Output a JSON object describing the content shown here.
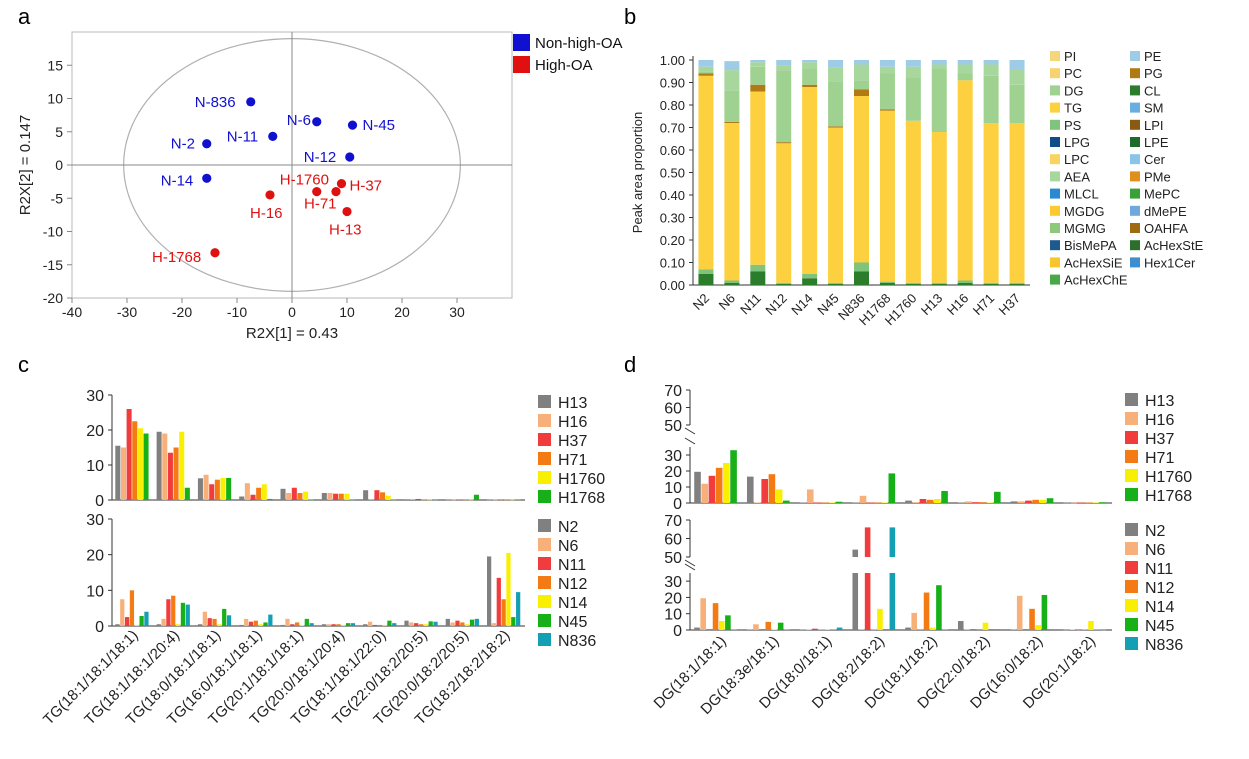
{
  "chart_data": [
    {
      "panel": "a",
      "type": "scatter",
      "xlabel": "R2X[1] = 0.43",
      "ylabel": "R2X[2] = 0.147",
      "xlim": [
        -40,
        40
      ],
      "ylim": [
        -20,
        20
      ],
      "xticks": [
        -40,
        -30,
        -20,
        -10,
        0,
        10,
        20,
        30
      ],
      "yticks": [
        -20,
        -15,
        -10,
        -5,
        0,
        5,
        10,
        15
      ],
      "legend": [
        {
          "label": "Non-high-OA",
          "color": "#1010d0"
        },
        {
          "label": "High-OA",
          "color": "#e01010"
        }
      ],
      "series": [
        {
          "name": "Non-high-OA",
          "color": "#1010d0",
          "points": [
            {
              "label": "N-836",
              "x": -7.5,
              "y": 9.5
            },
            {
              "label": "N-6",
              "x": 4.5,
              "y": 6.5
            },
            {
              "label": "N-45",
              "x": 11,
              "y": 6
            },
            {
              "label": "N-11",
              "x": -3.5,
              "y": 4.3
            },
            {
              "label": "N-2",
              "x": -15.5,
              "y": 3.2
            },
            {
              "label": "N-12",
              "x": 10.5,
              "y": 1.2
            },
            {
              "label": "N-14",
              "x": -15.5,
              "y": -2
            }
          ]
        },
        {
          "name": "High-OA",
          "color": "#e01010",
          "points": [
            {
              "label": "H-1760",
              "x": 4.5,
              "y": -4
            },
            {
              "label": "H-37",
              "x": 9,
              "y": -2.8
            },
            {
              "label": "H-16",
              "x": -4,
              "y": -4.5
            },
            {
              "label": "H-71",
              "x": 8,
              "y": -4
            },
            {
              "label": "H-13",
              "x": 10,
              "y": -7
            },
            {
              "label": "H-1768",
              "x": -14,
              "y": -13.2
            }
          ]
        }
      ]
    },
    {
      "panel": "b",
      "type": "bar",
      "stacked": true,
      "ylabel": "Peak area proportion",
      "ylim": [
        0,
        1
      ],
      "yticks": [
        "0.00",
        "0.10",
        "0.20",
        "0.30",
        "0.40",
        "0.50",
        "0.60",
        "0.70",
        "0.80",
        "0.90",
        "1.00"
      ],
      "categories": [
        "N2",
        "N6",
        "N11",
        "N12",
        "N14",
        "N45",
        "N836",
        "H1768",
        "H1760",
        "H13",
        "H16",
        "H71",
        "H37"
      ],
      "legend": [
        {
          "label": "PI",
          "color": "#f4d77a"
        },
        {
          "label": "PE",
          "color": "#9ecbe6"
        },
        {
          "label": "PC",
          "color": "#f6d36d"
        },
        {
          "label": "PG",
          "color": "#b07a14"
        },
        {
          "label": "DG",
          "color": "#9fd190"
        },
        {
          "label": "CL",
          "color": "#2b7d2b"
        },
        {
          "label": "TG",
          "color": "#fcd03e"
        },
        {
          "label": "SM",
          "color": "#6aaee0"
        },
        {
          "label": "PS",
          "color": "#7fc47a"
        },
        {
          "label": "LPI",
          "color": "#8b5a12"
        },
        {
          "label": "LPG",
          "color": "#0f4d8a"
        },
        {
          "label": "LPE",
          "color": "#1f6b2a"
        },
        {
          "label": "LPC",
          "color": "#f8d560"
        },
        {
          "label": "Cer",
          "color": "#8ac5e8"
        },
        {
          "label": "AEA",
          "color": "#a8d79e"
        },
        {
          "label": "PMe",
          "color": "#e08f1b"
        },
        {
          "label": "MLCL",
          "color": "#2a8ad0"
        },
        {
          "label": "MePC",
          "color": "#3aa03a"
        },
        {
          "label": "MGDG",
          "color": "#fcc930"
        },
        {
          "label": "dMePE",
          "color": "#6fa8dc"
        },
        {
          "label": "MGMG",
          "color": "#8cc97d"
        },
        {
          "label": "OAHFA",
          "color": "#a06a10"
        },
        {
          "label": "BisMePA",
          "color": "#1d5a8e"
        },
        {
          "label": "AcHexStE",
          "color": "#2c6e2c"
        },
        {
          "label": "AcHexSiE",
          "color": "#f8c62a"
        },
        {
          "label": "Hex1Cer",
          "color": "#3d8fd0"
        },
        {
          "label": "AcHexChE",
          "color": "#4aa84a"
        }
      ],
      "series": [
        {
          "name": "CL",
          "color": "#2b7d2b",
          "values": [
            0.05,
            0.01,
            0.06,
            0.005,
            0.03,
            0.005,
            0.06,
            0.01,
            0.005,
            0.005,
            0.01,
            0.005,
            0.005
          ]
        },
        {
          "name": "PS",
          "color": "#7fc47a",
          "values": [
            0.02,
            0.01,
            0.03,
            0.005,
            0.02,
            0.005,
            0.04,
            0.005,
            0.005,
            0.005,
            0.01,
            0.005,
            0.005
          ]
        },
        {
          "name": "TG",
          "color": "#fcd03e",
          "values": [
            0.86,
            0.7,
            0.77,
            0.62,
            0.83,
            0.69,
            0.74,
            0.76,
            0.72,
            0.67,
            0.89,
            0.71,
            0.71
          ]
        },
        {
          "name": "PG",
          "color": "#b07a14",
          "values": [
            0.01,
            0.005,
            0.03,
            0.005,
            0.01,
            0.005,
            0.03,
            0.005,
            0.0,
            0.0,
            0.0,
            0.0,
            0.0
          ]
        },
        {
          "name": "DG",
          "color": "#9fd190",
          "values": [
            0.01,
            0.14,
            0.08,
            0.32,
            0.07,
            0.2,
            0.04,
            0.16,
            0.19,
            0.28,
            0.03,
            0.21,
            0.17
          ]
        },
        {
          "name": "AEA",
          "color": "#a8d79e",
          "values": [
            0.02,
            0.09,
            0.02,
            0.02,
            0.03,
            0.06,
            0.07,
            0.03,
            0.05,
            0.02,
            0.04,
            0.05,
            0.07
          ]
        },
        {
          "name": "PE",
          "color": "#9ecbe6",
          "values": [
            0.03,
            0.04,
            0.01,
            0.025,
            0.01,
            0.035,
            0.02,
            0.03,
            0.03,
            0.02,
            0.02,
            0.02,
            0.04
          ]
        }
      ]
    },
    {
      "panel": "c",
      "type": "bar",
      "categories": [
        "TG(18:1/18:1/18:1)",
        "TG(18:1/18:1/20:4)",
        "TG(18:0/18:1/18:1)",
        "TG(16:0/18:1/18:1)",
        "TG(20:1/18:1/18:1)",
        "TG(20:0/18:1/20:4)",
        "TG(18:1/18:1/22:0)",
        "TG(22:0/18:2/20:5)",
        "TG(20:0/18:2/20:5)",
        "TG(18:2/18:2/18:2)"
      ],
      "subplots": [
        {
          "ylim": [
            0,
            30
          ],
          "yticks": [
            "0",
            "10",
            "20",
            "30"
          ],
          "series": [
            {
              "name": "H13",
              "color": "#808080",
              "values": [
                15.5,
                19.5,
                6.2,
                1.0,
                3.2,
                2.0,
                2.8,
                0.2,
                0.1,
                0.1
              ]
            },
            {
              "name": "H16",
              "color": "#f7b07a",
              "values": [
                15,
                19,
                7.2,
                4.8,
                2.0,
                2.0,
                0.3,
                0.3,
                0.1,
                0.1
              ]
            },
            {
              "name": "H37",
              "color": "#f03c3c",
              "values": [
                26,
                13.5,
                4.5,
                1.5,
                3.5,
                1.8,
                2.8,
                0.3,
                0.1,
                0.1
              ]
            },
            {
              "name": "H71",
              "color": "#f47a14",
              "values": [
                22.5,
                15,
                5.8,
                3.5,
                2.0,
                1.8,
                2.2,
                0.1,
                0.1,
                0.1
              ]
            },
            {
              "name": "H1760",
              "color": "#f8f000",
              "values": [
                20.5,
                19.5,
                6.3,
                4.5,
                2.4,
                1.8,
                1.2,
                0.1,
                0.1,
                0.1
              ]
            },
            {
              "name": "H1768",
              "color": "#18b018",
              "values": [
                19,
                3.5,
                6.3,
                0.3,
                0.1,
                0.1,
                0.1,
                0.1,
                1.5,
                0.1
              ]
            }
          ]
        },
        {
          "ylim": [
            0,
            30
          ],
          "yticks": [
            "0",
            "10",
            "20",
            "30"
          ],
          "series": [
            {
              "name": "N2",
              "color": "#808080",
              "values": [
                0.5,
                0.5,
                0.5,
                0.3,
                0.3,
                0.5,
                0.5,
                1.5,
                2.0,
                19.5
              ]
            },
            {
              "name": "N6",
              "color": "#f7b07a",
              "values": [
                7.5,
                2.0,
                4.0,
                2.0,
                2.0,
                0.5,
                1.2,
                1.0,
                1.0,
                0.8
              ]
            },
            {
              "name": "N11",
              "color": "#f03c3c",
              "values": [
                2.5,
                7.5,
                2.2,
                1.2,
                0.5,
                0.5,
                0.3,
                0.8,
                1.5,
                13.5
              ]
            },
            {
              "name": "N12",
              "color": "#f47a14",
              "values": [
                10,
                8.5,
                2.0,
                1.5,
                1.0,
                0.5,
                0.3,
                0.5,
                1.0,
                7.5
              ]
            },
            {
              "name": "N14",
              "color": "#f8f000",
              "values": [
                0.3,
                0.5,
                0.5,
                0.5,
                0.3,
                0.3,
                0.3,
                0.5,
                0.5,
                20.5
              ]
            },
            {
              "name": "N45",
              "color": "#18b018",
              "values": [
                2.8,
                6.5,
                4.8,
                1.0,
                2.0,
                0.8,
                1.5,
                1.3,
                1.8,
                2.5
              ]
            },
            {
              "name": "N836",
              "color": "#14a0b4",
              "values": [
                4.0,
                6.0,
                3.0,
                3.2,
                0.8,
                0.8,
                0.8,
                1.2,
                2.0,
                9.5
              ]
            }
          ]
        }
      ]
    },
    {
      "panel": "d",
      "type": "bar",
      "axis_break": [
        35,
        50
      ],
      "categories": [
        "DG(18:1/18:1)",
        "DG(18:3e/18:1)",
        "DG(18:0/18:1)",
        "DG(18:2/18:2)",
        "DG(18:1/18:2)",
        "DG(22:0/18:2)",
        "DG(16:0/18:2)",
        "DG(20:1/18:2)"
      ],
      "subplots": [
        {
          "yticks_low": [
            "0",
            "10",
            "20",
            "30"
          ],
          "yticks_high": [
            "50",
            "60",
            "70"
          ],
          "series": [
            {
              "name": "H13",
              "color": "#808080",
              "values": [
                19.5,
                16.5,
                0.3,
                0.3,
                1.5,
                0.3,
                1.0,
                0.2
              ]
            },
            {
              "name": "H16",
              "color": "#f7b07a",
              "values": [
                12,
                0.3,
                8.5,
                4.5,
                0.5,
                1.0,
                1.0,
                0.2
              ]
            },
            {
              "name": "H37",
              "color": "#f03c3c",
              "values": [
                17,
                15,
                0.3,
                0.3,
                2.5,
                0.5,
                1.5,
                0.3
              ]
            },
            {
              "name": "H71",
              "color": "#f47a14",
              "values": [
                22,
                18,
                0.3,
                0.3,
                2.0,
                0.5,
                2.0,
                0.3
              ]
            },
            {
              "name": "H1760",
              "color": "#f8f000",
              "values": [
                25,
                8.5,
                0.3,
                0.3,
                2.5,
                0.3,
                2.0,
                0.3
              ]
            },
            {
              "name": "H1768",
              "color": "#18b018",
              "values": [
                33,
                1.5,
                0.8,
                18.5,
                7.5,
                7.0,
                3.0,
                0.5
              ]
            }
          ]
        },
        {
          "yticks_low": [
            "0",
            "10",
            "20",
            "30"
          ],
          "yticks_high": [
            "50",
            "60",
            "70"
          ],
          "series": [
            {
              "name": "N2",
              "color": "#808080",
              "values": [
                1.5,
                0.3,
                0.3,
                54,
                1.5,
                5.5,
                0.3,
                0.2
              ]
            },
            {
              "name": "N6",
              "color": "#f7b07a",
              "values": [
                19.5,
                3.5,
                0.3,
                0.5,
                10.5,
                0.5,
                21,
                0.3
              ]
            },
            {
              "name": "N11",
              "color": "#f03c3c",
              "values": [
                0.5,
                0.5,
                0.8,
                66,
                0.3,
                0.5,
                0.5,
                0.2
              ]
            },
            {
              "name": "N12",
              "color": "#f47a14",
              "values": [
                16.5,
                5.0,
                0.3,
                0.3,
                23,
                0.5,
                13,
                0.3
              ]
            },
            {
              "name": "N14",
              "color": "#f8f000",
              "values": [
                5.5,
                0.3,
                0.5,
                13,
                1.5,
                4.5,
                3.0,
                5.5
              ]
            },
            {
              "name": "N45",
              "color": "#18b018",
              "values": [
                9.0,
                4.5,
                0.3,
                0.5,
                27.5,
                0.5,
                21.5,
                0.3
              ]
            },
            {
              "name": "N836",
              "color": "#14a0b4",
              "values": [
                0.3,
                0.3,
                1.5,
                66,
                0.3,
                0.5,
                0.5,
                0.2
              ]
            }
          ]
        }
      ]
    }
  ],
  "panels": {
    "a": "a",
    "b": "b",
    "c": "c",
    "d": "d"
  }
}
